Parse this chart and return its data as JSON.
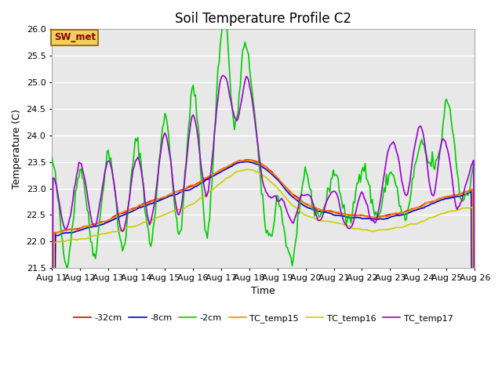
{
  "title": "Soil Temperature Profile C2",
  "xlabel": "Time",
  "ylabel": "Temperature (C)",
  "annotation": "SW_met",
  "ylim": [
    21.5,
    26.0
  ],
  "xlim": [
    0,
    15
  ],
  "x_tick_labels": [
    "Aug 11",
    "Aug 12",
    "Aug 13",
    "Aug 14",
    "Aug 15",
    "Aug 16",
    "Aug 17",
    "Aug 18",
    "Aug 19",
    "Aug 20",
    "Aug 21",
    "Aug 22",
    "Aug 23",
    "Aug 24",
    "Aug 25",
    "Aug 26"
  ],
  "yticks": [
    21.5,
    22.0,
    22.5,
    23.0,
    23.5,
    24.0,
    24.5,
    25.0,
    25.5,
    26.0
  ],
  "fig_bg_color": "#ffffff",
  "plot_bg_color": "#e8e8e8",
  "grid_color": "#ffffff",
  "series": {
    "neg32cm": {
      "label": "-32cm",
      "color": "#dd0000",
      "linewidth": 1.2
    },
    "neg8cm": {
      "label": "-8cm",
      "color": "#0000cc",
      "linewidth": 1.2
    },
    "neg2cm": {
      "label": "-2cm",
      "color": "#00cc00",
      "linewidth": 1.2
    },
    "TC_temp15": {
      "label": "TC_temp15",
      "color": "#ff8800",
      "linewidth": 1.2
    },
    "TC_temp16": {
      "label": "TC_temp16",
      "color": "#cccc00",
      "linewidth": 1.2
    },
    "TC_temp17": {
      "label": "TC_temp17",
      "color": "#9900cc",
      "linewidth": 1.2
    }
  },
  "title_fontsize": 12,
  "legend_fontsize": 8,
  "axis_fontsize": 8,
  "ylabel_fontsize": 9,
  "xlabel_fontsize": 9
}
